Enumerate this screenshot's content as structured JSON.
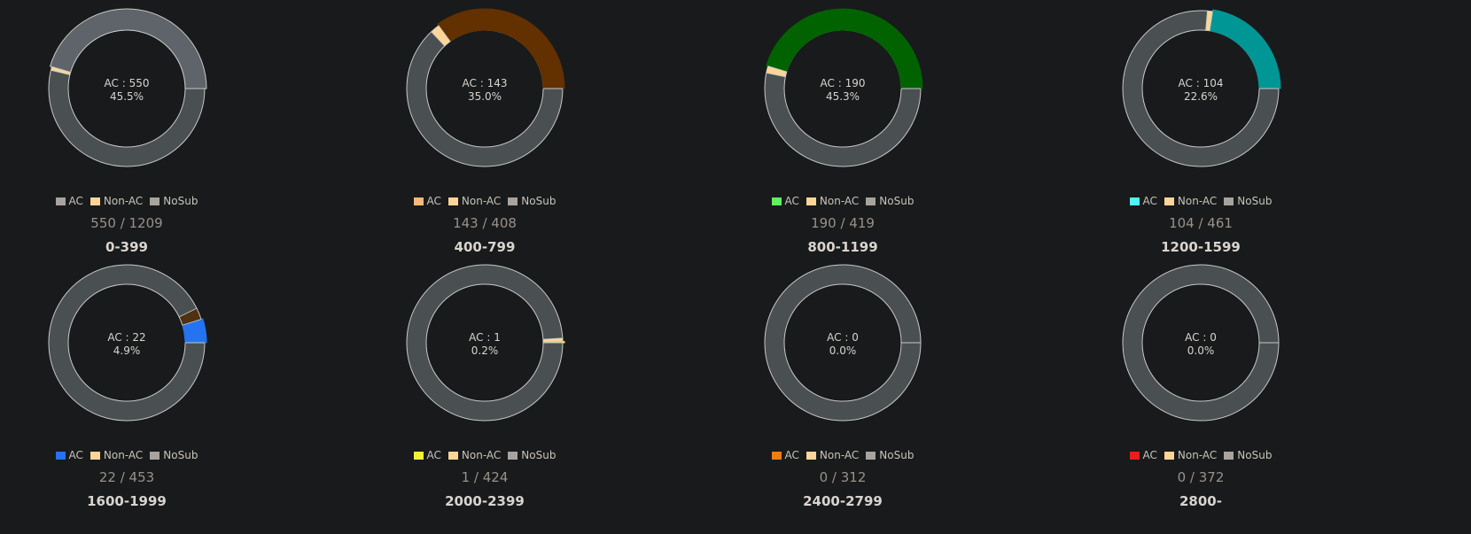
{
  "legend_labels": {
    "ac": "AC",
    "non_ac": "Non-AC",
    "nosub": "NoSub"
  },
  "colors": {
    "non_ac": "#fdd597",
    "nosub_track": "#4a4f52",
    "stroke": "#c7c7c7",
    "nosub_swatch": "#a8a39e"
  },
  "chart_data": [
    {
      "type": "pie",
      "title": "0-399",
      "ac": 550,
      "non_ac": 9,
      "total": 1209,
      "ac_label": "AC : 550",
      "percent_label": "45.5%",
      "ratio_label": "550 / 1209",
      "ac_color": "#5e6469",
      "ac_swatch": "#a8a39e"
    },
    {
      "type": "pie",
      "title": "400-799",
      "ac": 143,
      "non_ac": 8,
      "total": 408,
      "ac_label": "AC : 143",
      "percent_label": "35.0%",
      "ratio_label": "143 / 408",
      "ac_color": "#633000",
      "ac_swatch": "#f5b97a"
    },
    {
      "type": "pie",
      "title": "800-1199",
      "ac": 190,
      "non_ac": 6,
      "total": 419,
      "ac_label": "AC : 190",
      "percent_label": "45.3%",
      "ratio_label": "190 / 419",
      "ac_color": "#006300",
      "ac_swatch": "#5ff05f"
    },
    {
      "type": "pie",
      "title": "1200-1599",
      "ac": 104,
      "non_ac": 5,
      "total": 461,
      "ac_label": "AC : 104",
      "percent_label": "22.6%",
      "ratio_label": "104 / 461",
      "ac_color": "#009696",
      "ac_swatch": "#4df5f5"
    },
    {
      "type": "pie",
      "title": "1600-1999",
      "ac": 22,
      "non_ac": 11,
      "total": 453,
      "ac_label": "AC : 22",
      "percent_label": "4.9%",
      "ratio_label": "22 / 453",
      "ac_color": "#2473f0",
      "ac_swatch": "#2473f0",
      "non_ac_color": "#4f3210"
    },
    {
      "type": "pie",
      "title": "2000-2399",
      "ac": 1,
      "non_ac": 3,
      "total": 424,
      "ac_label": "AC : 1",
      "percent_label": "0.2%",
      "ratio_label": "1 / 424",
      "ac_color": "#f2f03c",
      "ac_swatch": "#f2f03c"
    },
    {
      "type": "pie",
      "title": "2400-2799",
      "ac": 0,
      "non_ac": 0,
      "total": 312,
      "ac_label": "AC : 0",
      "percent_label": "0.0%",
      "ratio_label": "0 / 312",
      "ac_color": "#f07d14",
      "ac_swatch": "#f07d14"
    },
    {
      "type": "pie",
      "title": "2800-",
      "ac": 0,
      "non_ac": 0,
      "total": 372,
      "ac_label": "AC : 0",
      "percent_label": "0.0%",
      "ratio_label": "0 / 372",
      "ac_color": "#e61e1e",
      "ac_swatch": "#e61e1e"
    }
  ]
}
